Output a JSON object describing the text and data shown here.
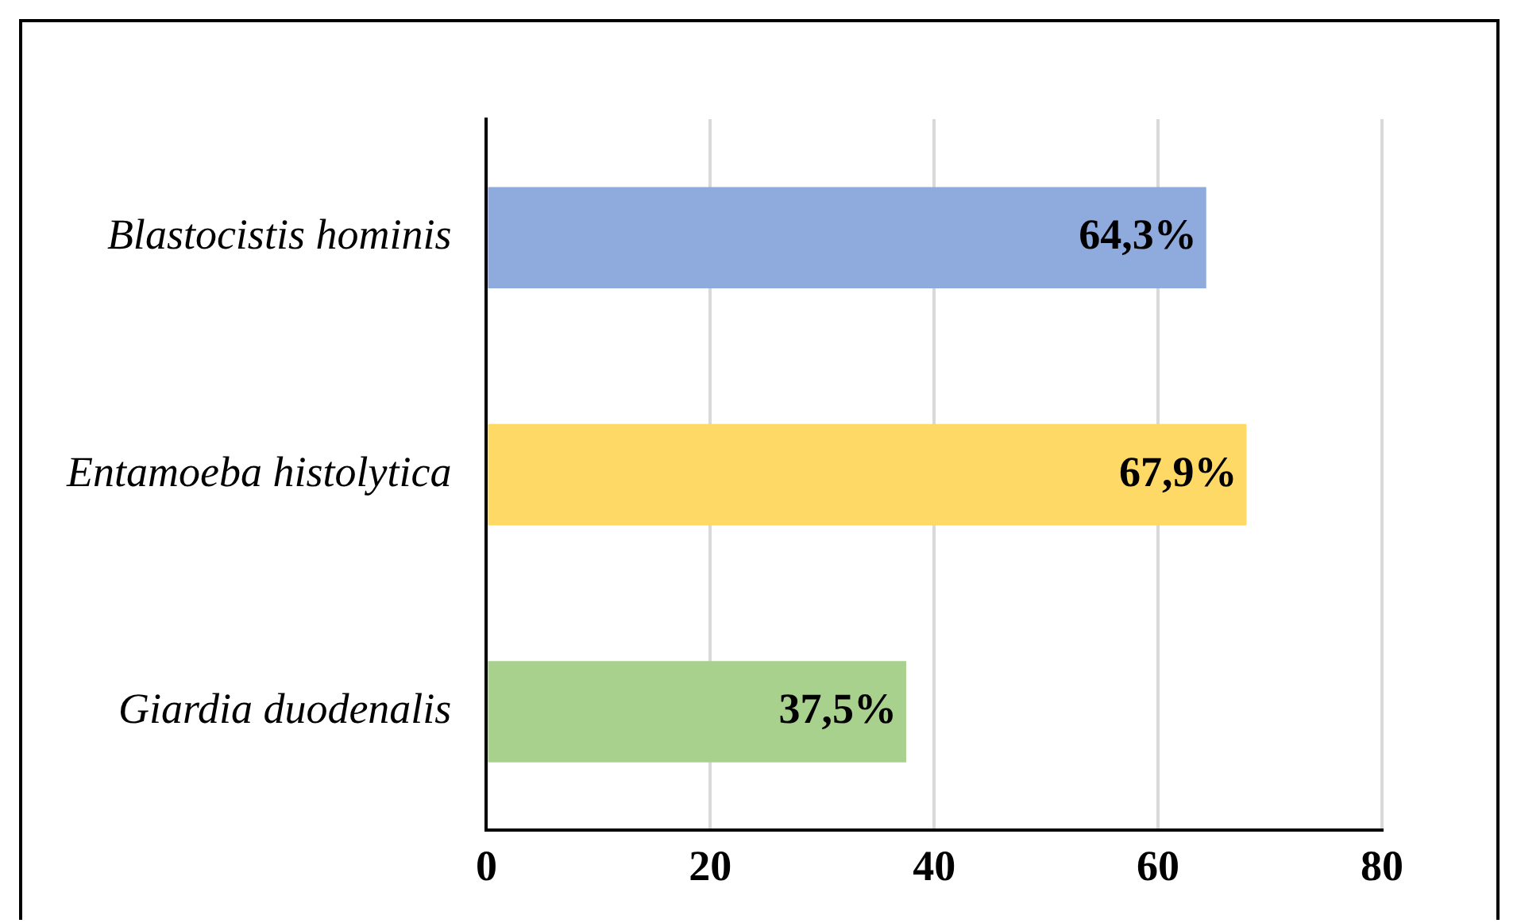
{
  "chart_data": {
    "type": "bar",
    "orientation": "horizontal",
    "categories": [
      "Blastocistis hominis",
      "Entamoeba histolytica",
      "Giardia duodenalis"
    ],
    "values": [
      64.3,
      67.9,
      37.5
    ],
    "colors": [
      "#8faadc",
      "#ffd966",
      "#a9d18e"
    ],
    "value_labels": [
      "64,3%",
      "67,9%",
      "37,5%"
    ],
    "xlim": [
      0,
      80
    ],
    "xticks": [
      0,
      20,
      40,
      60,
      80
    ],
    "grid": "x",
    "legend": false
  }
}
